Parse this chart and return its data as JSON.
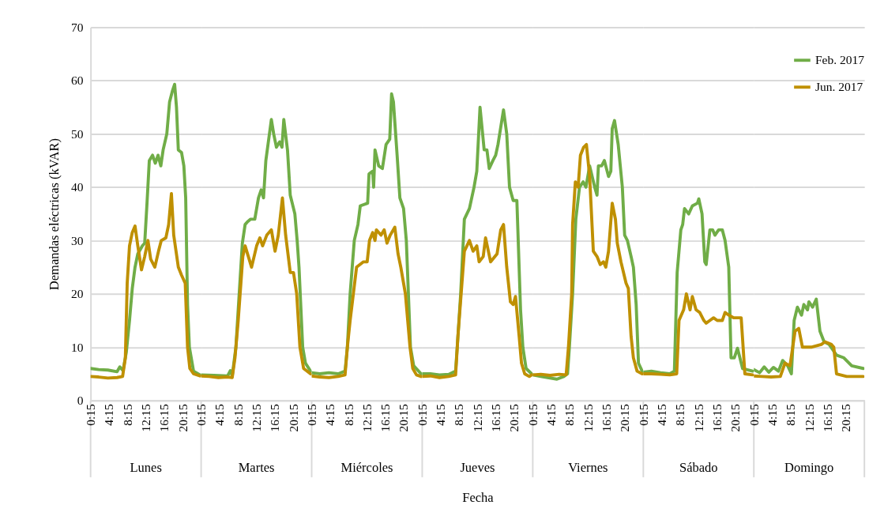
{
  "chart_data": [
    {
      "type": "line",
      "title": "Lunes",
      "ylabel": "Demandas eléctricas (kVAR)",
      "xlim": [
        0.25,
        24.25
      ],
      "ylim": [
        0,
        70
      ],
      "yticks": [
        0,
        10,
        20,
        30,
        40,
        50,
        60,
        70
      ],
      "xticks": [
        {
          "value": 0.25,
          "label": "0:15"
        },
        {
          "value": 4.25,
          "label": "4:15"
        },
        {
          "value": 8.25,
          "label": "8:15"
        },
        {
          "value": 12.25,
          "label": "12:15"
        },
        {
          "value": 16.25,
          "label": "16:15"
        },
        {
          "value": 20.25,
          "label": "20:15"
        }
      ],
      "grid": "y",
      "marker": "none",
      "line_style": "solid",
      "series": [
        {
          "color": "#70ad47",
          "x": [
            0.25,
            2,
            4,
            6,
            6.6,
            7.3,
            8,
            8.7,
            9.3,
            9.9,
            10.5,
            11.5,
            12,
            12.5,
            13,
            13.7,
            14.3,
            14.9,
            15.5,
            16,
            16.8,
            17.4,
            18,
            18.5,
            18.9,
            19.3,
            20,
            20.5,
            20.9,
            21.3,
            21.7,
            22.2,
            22.6,
            24
          ],
          "values": [
            6,
            5.8,
            5.7,
            5.4,
            6.3,
            5.6,
            9,
            15,
            21,
            25,
            27.5,
            29,
            29.5,
            37,
            45,
            46,
            44.5,
            46,
            44,
            47,
            50,
            56,
            58,
            59.3,
            55,
            47,
            46.5,
            44,
            38,
            18,
            10,
            7.5,
            5.5,
            4.8
          ]
        },
        {
          "color": "#bf9000",
          "x": [
            0.25,
            2,
            4,
            6,
            7.2,
            7.8,
            8.2,
            8.7,
            9.3,
            9.9,
            10.5,
            11.3,
            12,
            12.7,
            13.3,
            14.2,
            15,
            15.6,
            16.6,
            17.2,
            17.8,
            18.3,
            18.8,
            19.3,
            20,
            20.8,
            21.3,
            21.8,
            22.6,
            24
          ],
          "values": [
            4.5,
            4.4,
            4.2,
            4.3,
            4.5,
            8,
            22,
            29,
            31.5,
            32.7,
            29,
            24.5,
            27,
            30,
            26.5,
            25,
            28,
            30,
            30.5,
            33,
            38.8,
            31,
            28,
            25,
            23.5,
            22,
            10,
            6,
            5,
            4.6
          ]
        }
      ]
    },
    {
      "type": "line",
      "title": "Martes",
      "xlim": [
        0.25,
        24.25
      ],
      "ylim": [
        0,
        70
      ],
      "yticks": [
        0,
        10,
        20,
        30,
        40,
        50,
        60,
        70
      ],
      "tick_labels": "x",
      "xticks": [
        {
          "value": 0.25,
          "label": "0:15"
        },
        {
          "value": 4.25,
          "label": "4:15"
        },
        {
          "value": 8.25,
          "label": "8:15"
        },
        {
          "value": 12.25,
          "label": "12:15"
        },
        {
          "value": 16.25,
          "label": "16:15"
        },
        {
          "value": 20.25,
          "label": "20:15"
        }
      ],
      "grid": "y",
      "marker": "none",
      "line_style": "solid",
      "series": [
        {
          "color": "#70ad47",
          "x": [
            0.25,
            3,
            6,
            6.6,
            7,
            7.8,
            8.3,
            9.2,
            9.8,
            10.3,
            11,
            11.9,
            12.7,
            13.3,
            13.8,
            14.3,
            15.5,
            16,
            16.6,
            17.3,
            17.8,
            18.2,
            19,
            19.6,
            20.6,
            21.1,
            21.5,
            22.3,
            22.9,
            24
          ],
          "values": [
            4.8,
            4.7,
            4.6,
            5.6,
            4.6,
            10,
            17,
            29.5,
            33,
            33.5,
            34,
            34,
            38,
            39.5,
            38,
            45,
            52.7,
            50,
            47.5,
            48.5,
            47.5,
            52.7,
            47,
            38.5,
            35,
            30,
            25,
            10,
            7,
            5.5
          ]
        },
        {
          "color": "#bf9000",
          "x": [
            0.25,
            2,
            4,
            6,
            7,
            7.6,
            8.3,
            9.3,
            9.8,
            11.2,
            12.3,
            13,
            13.6,
            14.5,
            15.5,
            16.3,
            17,
            17.9,
            18.6,
            19.6,
            20.3,
            21,
            21.7,
            22.5,
            24
          ],
          "values": [
            4.6,
            4.5,
            4.3,
            4.4,
            4.3,
            8,
            15,
            27,
            29,
            25,
            29,
            30.5,
            29,
            31,
            32,
            28,
            31,
            38,
            31,
            24,
            24,
            20,
            10,
            6,
            5
          ]
        }
      ]
    },
    {
      "type": "line",
      "title": "Miércoles",
      "xlim": [
        0.25,
        24.25
      ],
      "ylim": [
        0,
        70
      ],
      "yticks": [
        0,
        10,
        20,
        30,
        40,
        50,
        60,
        70
      ],
      "tick_labels": "x",
      "xticks": [
        {
          "value": 0.25,
          "label": "0:15"
        },
        {
          "value": 4.25,
          "label": "4:15"
        },
        {
          "value": 8.25,
          "label": "8:15"
        },
        {
          "value": 12.25,
          "label": "12:15"
        },
        {
          "value": 16.25,
          "label": "16:15"
        },
        {
          "value": 20.25,
          "label": "20:15"
        }
      ],
      "grid": "y",
      "marker": "none",
      "line_style": "solid",
      "series": [
        {
          "color": "#70ad47",
          "x": [
            0.25,
            2,
            4,
            6,
            7.5,
            8,
            8.6,
            9.5,
            10.3,
            10.8,
            12.4,
            12.7,
            13.5,
            13.7,
            14,
            14.8,
            15.6,
            16.4,
            17.2,
            17.6,
            18,
            18.8,
            19.4,
            20.2,
            20.8,
            21.7,
            22.4,
            24
          ],
          "values": [
            5.2,
            5,
            5.2,
            5,
            5.5,
            10,
            20,
            30,
            33,
            36.5,
            37,
            42.5,
            43,
            40,
            47,
            44,
            43.5,
            48,
            49,
            57.5,
            56,
            46,
            38,
            36,
            30,
            10,
            6.5,
            5
          ]
        },
        {
          "color": "#bf9000",
          "x": [
            0.25,
            2,
            4,
            6,
            7.5,
            8,
            8.6,
            9.3,
            10,
            11.5,
            12.3,
            12.8,
            13.5,
            14,
            14.3,
            15.3,
            16,
            16.6,
            17.3,
            18.3,
            19,
            19.6,
            20.2,
            20.6,
            21.6,
            22.2,
            23,
            24
          ],
          "values": [
            4.6,
            4.4,
            4.3,
            4.5,
            4.8,
            10,
            15,
            20,
            25,
            26,
            26,
            30,
            31.5,
            30,
            32,
            31,
            32,
            29.5,
            31,
            32.5,
            27.5,
            25,
            22,
            20,
            10,
            6,
            4.8,
            4.5
          ]
        }
      ]
    },
    {
      "type": "line",
      "title": "Jueves",
      "xlabel": "Fecha",
      "xlim": [
        0.25,
        24.25
      ],
      "ylim": [
        0,
        70
      ],
      "yticks": [
        0,
        10,
        20,
        30,
        40,
        50,
        60,
        70
      ],
      "tick_labels": "x",
      "xticks": [
        {
          "value": 0.25,
          "label": "0:15"
        },
        {
          "value": 4.25,
          "label": "4:15"
        },
        {
          "value": 8.25,
          "label": "8:15"
        },
        {
          "value": 12.25,
          "label": "12:15"
        },
        {
          "value": 16.25,
          "label": "16:15"
        },
        {
          "value": 20.25,
          "label": "20:15"
        }
      ],
      "grid": "y",
      "marker": "none",
      "line_style": "solid",
      "series": [
        {
          "color": "#70ad47",
          "x": [
            0.25,
            2,
            4,
            6,
            7.5,
            8,
            8.6,
            9.4,
            10.5,
            11,
            11.5,
            12.1,
            12.8,
            13.7,
            14.3,
            14.8,
            15.6,
            16.2,
            16.7,
            17.9,
            18.6,
            19.2,
            20,
            20.8,
            21.6,
            22.1,
            22.8,
            24
          ],
          "values": [
            5,
            5,
            4.8,
            4.9,
            5.5,
            12,
            20,
            34,
            36,
            38,
            40,
            43,
            55,
            47,
            47,
            43.5,
            45,
            46,
            48,
            54.5,
            50,
            40,
            37.5,
            37.5,
            17,
            10,
            6,
            5
          ]
        },
        {
          "color": "#bf9000",
          "x": [
            0.25,
            2,
            4,
            6,
            7.5,
            8,
            8.7,
            9.4,
            10.5,
            11.3,
            12.1,
            12.6,
            13.5,
            14,
            15.1,
            16.5,
            17.3,
            17.9,
            18.6,
            19.4,
            20,
            20.5,
            21.3,
            21.8,
            22.5,
            23.5,
            24
          ],
          "values": [
            4.5,
            4.6,
            4.3,
            4.5,
            4.8,
            12,
            20,
            28,
            30,
            28,
            29,
            26,
            27,
            30.5,
            26,
            27.5,
            32,
            33,
            25,
            18.5,
            18,
            19.5,
            12,
            7,
            5,
            4.5,
            4.8
          ]
        }
      ]
    },
    {
      "type": "line",
      "title": "Viernes",
      "xlim": [
        0.25,
        24.25
      ],
      "ylim": [
        0,
        70
      ],
      "yticks": [
        0,
        10,
        20,
        30,
        40,
        50,
        60,
        70
      ],
      "tick_labels": "x",
      "xticks": [
        {
          "value": 0.25,
          "label": "0:15"
        },
        {
          "value": 4.25,
          "label": "4:15"
        },
        {
          "value": 8.25,
          "label": "8:15"
        },
        {
          "value": 12.25,
          "label": "12:15"
        },
        {
          "value": 16.25,
          "label": "16:15"
        },
        {
          "value": 20.25,
          "label": "20:15"
        }
      ],
      "grid": "y",
      "marker": "none",
      "line_style": "solid",
      "series": [
        {
          "color": "#70ad47",
          "x": [
            0.25,
            2,
            4,
            5.5,
            7,
            7.8,
            8.2,
            8.9,
            9.6,
            10.4,
            11.2,
            11.8,
            12.6,
            13.7,
            14.2,
            14.5,
            15.2,
            15.8,
            16.7,
            17.2,
            17.5,
            18,
            18.8,
            19.7,
            20.2,
            20.8,
            21.6,
            22.1,
            22.7,
            23.2,
            24
          ],
          "values": [
            4.8,
            4.5,
            4.2,
            4,
            4.5,
            5,
            10,
            20,
            34,
            40,
            41,
            40,
            44,
            40,
            38.5,
            44,
            44,
            45,
            42,
            43,
            51,
            52.5,
            48,
            40,
            31,
            30,
            27,
            25,
            18,
            7,
            5.5
          ]
        },
        {
          "color": "#bf9000",
          "x": [
            0.25,
            2,
            4,
            6,
            7.5,
            8,
            8.7,
            8.9,
            9.5,
            10.1,
            10.6,
            11.3,
            11.9,
            12.6,
            13.4,
            14.2,
            14.9,
            15.6,
            16.1,
            16.7,
            17.5,
            18.2,
            18.6,
            19.4,
            20.5,
            21,
            21.6,
            22.1,
            22.9,
            24
          ],
          "values": [
            4.8,
            4.9,
            4.7,
            4.9,
            4.8,
            10,
            20,
            33,
            41,
            40,
            46,
            47.5,
            48,
            42,
            28,
            27,
            25.5,
            26,
            25,
            28,
            37,
            34,
            29.5,
            26,
            22,
            21,
            12,
            8,
            5.5,
            5
          ]
        }
      ]
    },
    {
      "type": "line",
      "title": "Sábado",
      "xlim": [
        0.25,
        24.25
      ],
      "ylim": [
        0,
        70
      ],
      "yticks": [
        0,
        10,
        20,
        30,
        40,
        50,
        60,
        70
      ],
      "tick_labels": "x",
      "xticks": [
        {
          "value": 0.25,
          "label": "0:15"
        },
        {
          "value": 4.25,
          "label": "4:15"
        },
        {
          "value": 8.25,
          "label": "8:15"
        },
        {
          "value": 12.25,
          "label": "12:15"
        },
        {
          "value": 16.25,
          "label": "16:15"
        },
        {
          "value": 20.25,
          "label": "20:15"
        }
      ],
      "grid": "y",
      "marker": "none",
      "line_style": "solid",
      "series": [
        {
          "color": "#70ad47",
          "x": [
            0.25,
            2,
            4,
            6,
            7,
            7.6,
            8.4,
            8.8,
            9.2,
            10.1,
            10.9,
            12,
            12.3,
            13,
            13.6,
            13.9,
            14.7,
            15.3,
            15.8,
            16.6,
            17.4,
            18,
            18.8,
            19.3,
            20,
            20.7,
            21.8,
            24
          ],
          "values": [
            5.3,
            5.5,
            5.2,
            5,
            5.5,
            24,
            32,
            33,
            36,
            35,
            36.5,
            37,
            37.8,
            35,
            26,
            25.5,
            32,
            32,
            31,
            32,
            32,
            30,
            25,
            8,
            8,
            9.8,
            6,
            5.5
          ]
        },
        {
          "color": "#bf9000",
          "x": [
            0.25,
            2,
            4,
            6,
            7.5,
            8,
            9,
            9.6,
            10.4,
            10.9,
            11.7,
            12.5,
            13.4,
            13.9,
            14.7,
            15.5,
            16.3,
            17.4,
            18,
            18.8,
            19.9,
            21.5,
            22.3,
            24
          ],
          "values": [
            5,
            5,
            4.9,
            4.8,
            5,
            15,
            17,
            20,
            17,
            19.5,
            17,
            16.5,
            15,
            14.5,
            15,
            15.5,
            15,
            15,
            16.5,
            16,
            15.5,
            15.5,
            5,
            4.8
          ]
        }
      ]
    },
    {
      "type": "line",
      "title": "Domingo",
      "xlim": [
        0.25,
        24.25
      ],
      "ylim": [
        0,
        70
      ],
      "yticks": [
        0,
        10,
        20,
        30,
        40,
        50,
        60,
        70
      ],
      "tick_labels": "x",
      "xticks": [
        {
          "value": 0.25,
          "label": "0:15"
        },
        {
          "value": 4.25,
          "label": "4:15"
        },
        {
          "value": 8.25,
          "label": "8:15"
        },
        {
          "value": 12.25,
          "label": "12:15"
        },
        {
          "value": 16.25,
          "label": "16:15"
        },
        {
          "value": 20.25,
          "label": "20:15"
        }
      ],
      "grid": "y",
      "legend": "top right",
      "marker": "none",
      "line_style": "solid",
      "series": [
        {
          "name": "Feb. 2017",
          "color": "#70ad47",
          "x": [
            0.25,
            1.5,
            2.5,
            3.5,
            4.5,
            5.6,
            6.5,
            7.6,
            8.4,
            9,
            9.7,
            10.6,
            11.1,
            11.9,
            12.2,
            13,
            13.8,
            14.6,
            15.5,
            16.6,
            18.2,
            19.8,
            21.5,
            24
          ],
          "values": [
            5.8,
            5.2,
            6.3,
            5.3,
            6.2,
            5.5,
            7.5,
            6.5,
            5,
            15,
            17.5,
            16,
            18,
            17,
            18.5,
            17.5,
            19,
            13,
            11,
            10.5,
            8.5,
            8,
            6.5,
            6
          ]
        },
        {
          "name": "Jun. 2017",
          "color": "#bf9000",
          "x": [
            0.25,
            2,
            4,
            6,
            7,
            8.1,
            9.2,
            10,
            10.8,
            12.7,
            14.9,
            15.7,
            17.1,
            17.6,
            18.2,
            20.4,
            24
          ],
          "values": [
            4.6,
            4.5,
            4.4,
            4.5,
            7,
            6.5,
            13,
            13.5,
            10,
            10,
            10.5,
            11,
            10.5,
            10,
            5,
            4.5,
            4.5
          ]
        }
      ]
    }
  ]
}
